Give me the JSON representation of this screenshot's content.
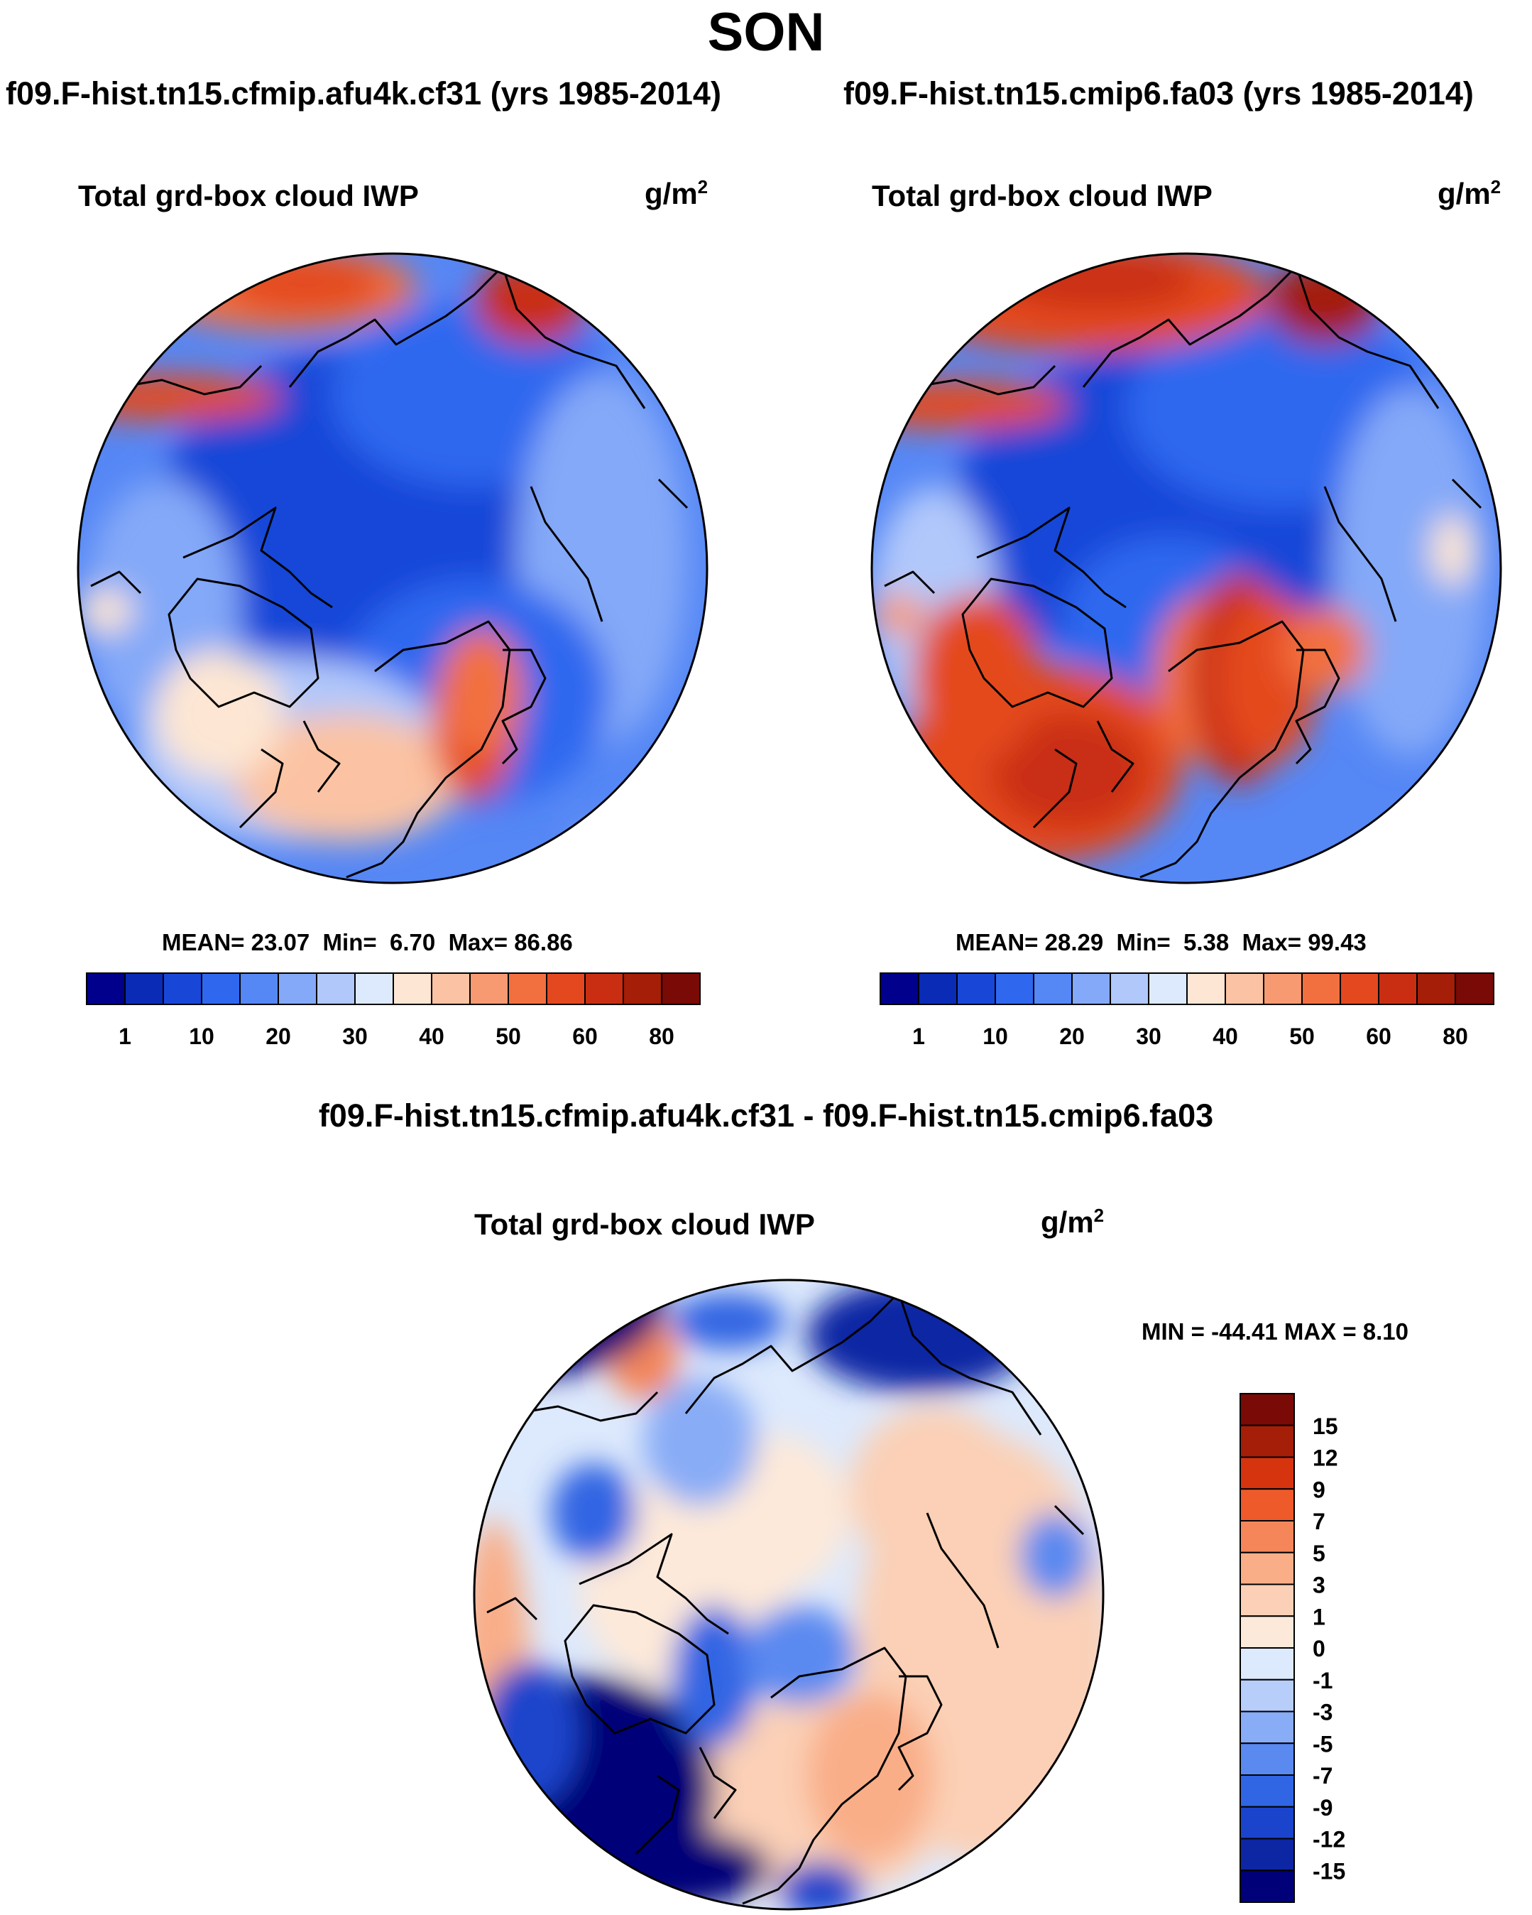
{
  "title": "SON",
  "panels": [
    {
      "case": "f09.F-hist.tn15.cfmip.afu4k.cf31 (yrs 1985-2014)",
      "variable": "Total grd-box cloud IWP",
      "units_base": "g/m",
      "units_exp": "2",
      "mean_label": "MEAN=",
      "mean": "23.07",
      "min_label": "Min=",
      "min": "6.70",
      "max_label": "Max=",
      "max": "86.86"
    },
    {
      "case": "f09.F-hist.tn15.cmip6.fa03 (yrs 1985-2014)",
      "variable": "Total grd-box cloud IWP",
      "units_base": "g/m",
      "units_exp": "2",
      "mean_label": "MEAN=",
      "mean": "28.29",
      "min_label": "Min=",
      "min": "5.38",
      "max_label": "Max=",
      "max": "99.43"
    }
  ],
  "abs_colorbar": {
    "colors": [
      "#00008c",
      "#0a2bb5",
      "#1847d8",
      "#2f68ef",
      "#5587f5",
      "#84a9f8",
      "#b1c8fb",
      "#dde9fc",
      "#fde6d3",
      "#fbc3a3",
      "#f79a72",
      "#f2703f",
      "#e4481f",
      "#c92e12",
      "#a41e08",
      "#7a0a05"
    ],
    "labels": [
      "1",
      "10",
      "20",
      "30",
      "40",
      "50",
      "60",
      "80"
    ]
  },
  "difference": {
    "title": "f09.F-hist.tn15.cfmip.afu4k.cf31 - f09.F-hist.tn15.cmip6.fa03",
    "variable": "Total grd-box cloud IWP",
    "units_base": "g/m",
    "units_exp": "2",
    "minmax_text": "MIN = -44.41 MAX =   8.10"
  },
  "diff_colorbar": {
    "colors": [
      "#7a0a05",
      "#a41e08",
      "#d5340f",
      "#ee5a2a",
      "#f4865a",
      "#f9ae88",
      "#fbd0b6",
      "#fde9d9",
      "#dde9fc",
      "#b7cdfa",
      "#88acf6",
      "#5a89f0",
      "#3065e3",
      "#1a44cc",
      "#0d26a4",
      "#000078"
    ],
    "labels": [
      "15",
      "12",
      "9",
      "7",
      "5",
      "3",
      "1",
      "0",
      "-1",
      "-3",
      "-5",
      "-7",
      "-9",
      "-12",
      "-15"
    ]
  },
  "colors": {
    "ocean_base_abs": "#2f68ef",
    "diff_base": "#dde9fc",
    "coastline": "#000000"
  }
}
